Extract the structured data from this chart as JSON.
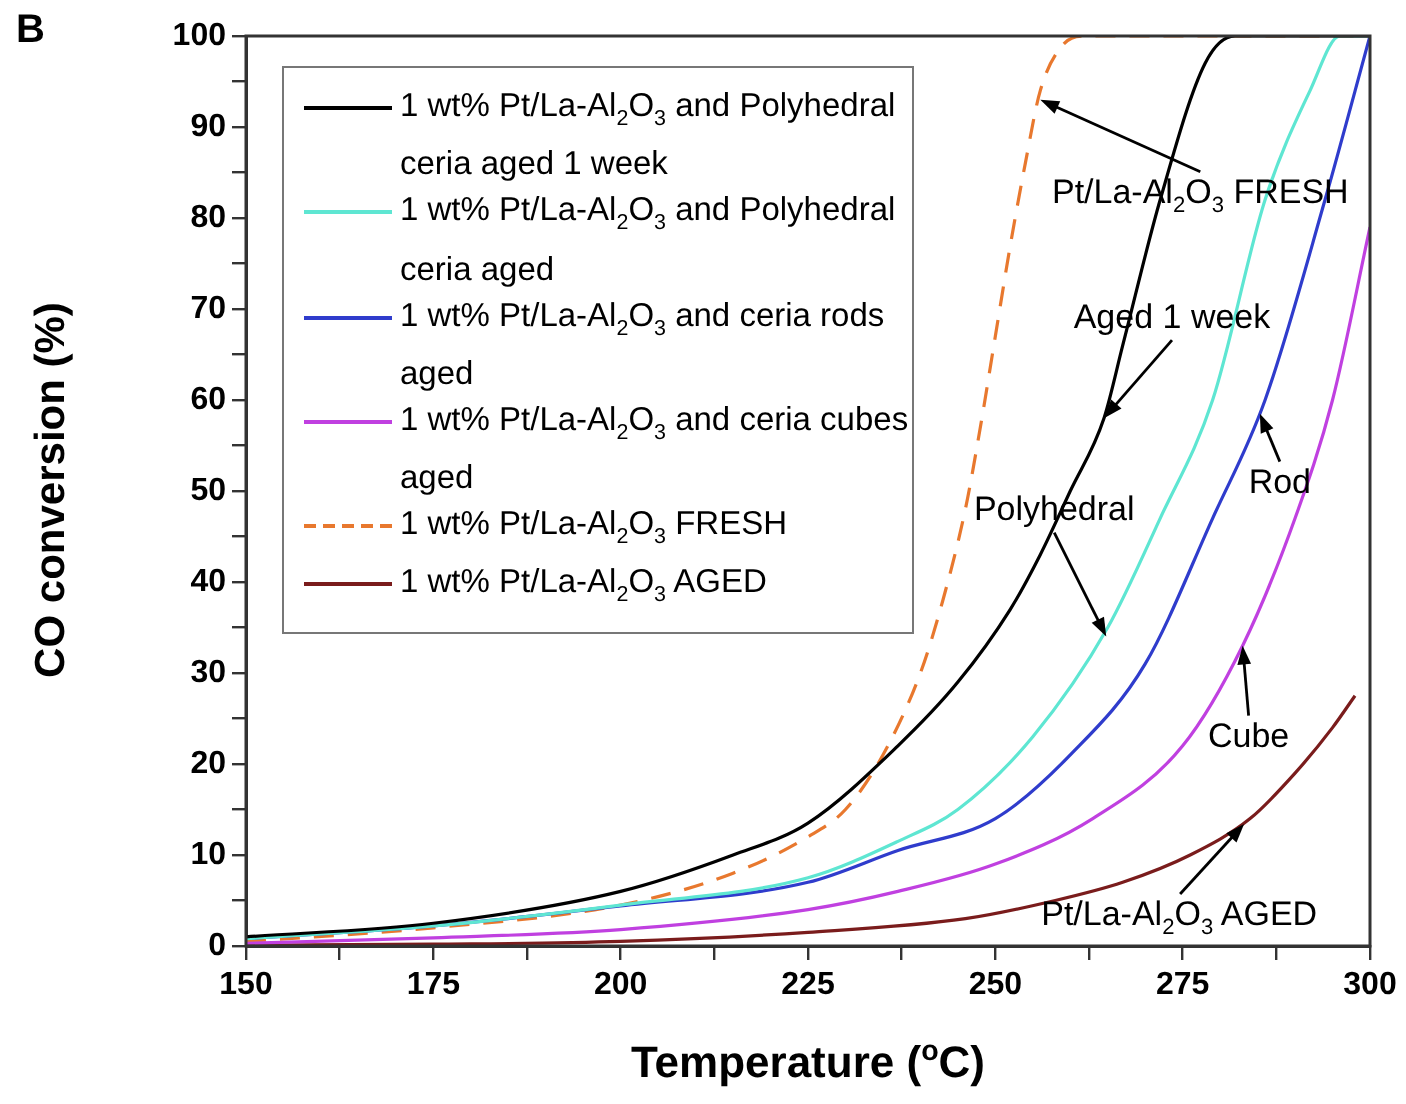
{
  "chart_data": {
    "type": "line",
    "title": "B",
    "xlabel": "Temperature ($^{o}$C)",
    "ylabel": "CO conversion (%)",
    "xlim": [
      150,
      300
    ],
    "ylim": [
      0,
      100
    ],
    "xticks": [
      150,
      {
        "value": 162.5,
        "label": null
      },
      175,
      {
        "value": 187.5,
        "label": null
      },
      200,
      {
        "value": 212.5,
        "label": null
      },
      225,
      {
        "value": 237.5,
        "label": null
      },
      250,
      {
        "value": 262.5,
        "label": null
      },
      275,
      {
        "value": 287.5,
        "label": null
      },
      300
    ],
    "yticks": [
      0,
      {
        "value": 5,
        "label": null
      },
      10,
      {
        "value": 15,
        "label": null
      },
      20,
      {
        "value": 25,
        "label": null
      },
      30,
      {
        "value": 35,
        "label": null
      },
      40,
      {
        "value": 45,
        "label": null
      },
      50,
      {
        "value": 55,
        "label": null
      },
      60,
      {
        "value": 65,
        "label": null
      },
      70,
      {
        "value": 75,
        "label": null
      },
      80,
      {
        "value": 85,
        "label": null
      },
      90,
      {
        "value": 95,
        "label": null
      },
      100
    ],
    "grid": false,
    "legend": "top left",
    "marker": "none",
    "series": [
      {
        "name": "1 wt% Pt/La-Al$_{2}$O$_{3}$ and Polyhedral ceria aged 1 week",
        "color": "#000000",
        "x": [
          150,
          175,
          200,
          215,
          225,
          237,
          245,
          252,
          256,
          260,
          264.5,
          267,
          272,
          278,
          282,
          300
        ],
        "values": [
          1,
          2.5,
          6,
          10,
          13.5,
          22,
          29,
          37,
          43,
          50,
          58,
          66,
          82,
          97,
          100,
          100
        ]
      },
      {
        "name": "1 wt% Pt/La-Al$_{2}$O$_{3}$ and Polyhedral ceria aged",
        "color": "#5ee6d2",
        "x": [
          150,
          175,
          200,
          225,
          237,
          245,
          255,
          265,
          272,
          279,
          286,
          292,
          296,
          300
        ],
        "values": [
          0.8,
          2.2,
          4.5,
          7.5,
          11.5,
          15,
          23,
          35,
          47,
          60,
          82,
          94,
          100,
          100
        ]
      },
      {
        "name": "1 wt% Pt/La-Al$_{2}$O$_{3}$ and ceria rods aged",
        "color": "#2f3ccc",
        "x": [
          150,
          175,
          200,
          225,
          237,
          250,
          260,
          270,
          279,
          286,
          294,
          300
        ],
        "values": [
          0.8,
          2.2,
          4.4,
          7,
          10.5,
          14,
          21,
          31,
          47,
          60,
          82,
          100
        ]
      },
      {
        "name": "1 wt% Pt/La-Al$_{2}$O$_{3}$ and ceria cubes aged",
        "color": "#c040e0",
        "x": [
          150,
          175,
          200,
          225,
          237,
          250,
          263,
          275,
          283,
          290,
          295,
          300
        ],
        "values": [
          0.3,
          0.9,
          1.8,
          4,
          6,
          9,
          14,
          22,
          33,
          47,
          60,
          79
        ]
      },
      {
        "name": "1 wt% Pt/La-Al$_{2}$O$_{3}$ FRESH",
        "color": "#e8782e",
        "line_style": "dashed",
        "x": [
          150,
          175,
          200,
          215,
          225,
          230,
          235,
          240,
          243,
          246,
          248,
          250,
          252,
          254,
          256,
          259,
          262,
          300
        ],
        "values": [
          0.5,
          2,
          4.5,
          8,
          12,
          15,
          21,
          30,
          38,
          48,
          57,
          67,
          77,
          86,
          94,
          99,
          100,
          100
        ]
      },
      {
        "name": "1 wt% Pt/La-Al$_{2}$O$_{3}$ AGED",
        "color": "#7a1c1c",
        "x": [
          150,
          175,
          200,
          225,
          246,
          258,
          267,
          276,
          284,
          290,
          295,
          298
        ],
        "values": [
          0.1,
          0.2,
          0.5,
          1.5,
          3,
          5,
          7,
          10,
          14,
          19,
          24,
          27.5
        ]
      }
    ],
    "annotations": [
      {
        "text": "Pt/La-Al$_{2}$O$_{3}$ FRESH",
        "x": 256,
        "y": 93
      },
      {
        "text": "Aged 1 week",
        "x": 264.5,
        "y": 58
      },
      {
        "text": "Polyhedral",
        "x": 264.8,
        "y": 34
      },
      {
        "text": "Rod",
        "x": 285.3,
        "y": 58.5
      },
      {
        "text": "Cube",
        "x": 283,
        "y": 33
      },
      {
        "text": "Pt/La-Al$_{2}$O$_{3}$ AGED",
        "x": 283.2,
        "y": 13.4
      }
    ]
  }
}
